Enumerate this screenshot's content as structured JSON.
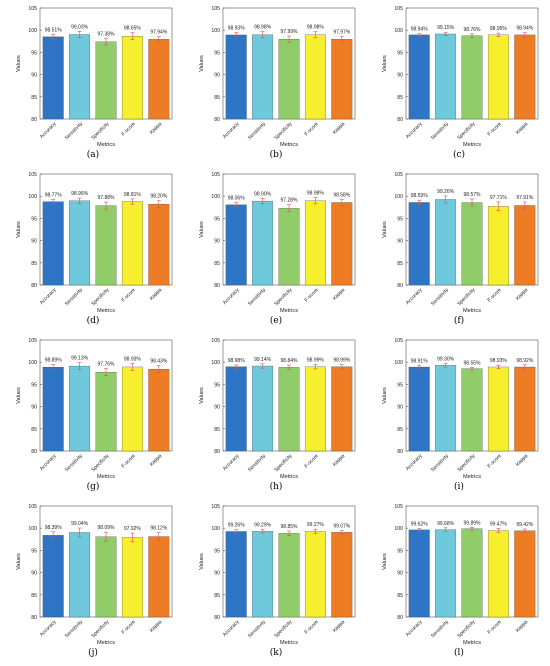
{
  "colors": {
    "accuracy": "#2e75c5",
    "sensitivity": "#6ec9dc",
    "specificity": "#90cc68",
    "fscore": "#f7ef2e",
    "kappa": "#ee7c24",
    "error_bar": "#e05050",
    "axis": "#555555"
  },
  "chart_data": [
    {
      "type": "bar",
      "caption": "(a)",
      "categories": [
        "Accuracy",
        "Sensitivity",
        "Specificity",
        "F-score",
        "Kappa"
      ],
      "values": [
        98.51,
        99.03,
        97.38,
        98.65,
        97.94
      ],
      "value_labels": [
        "98.51%",
        "99.03%",
        "97.38%",
        "98.65%",
        "97.94%"
      ],
      "errors": [
        0.5,
        0.7,
        0.7,
        0.8,
        0.6
      ],
      "xlabel": "Metrics",
      "ylabel": "Values",
      "ylim": [
        80,
        105
      ],
      "yticks": [
        "80",
        "85",
        "90",
        "95",
        "100",
        "105"
      ]
    },
    {
      "type": "bar",
      "caption": "(b)",
      "categories": [
        "Accuracy",
        "Sensitivity",
        "Specificity",
        "F-score",
        "Kappa"
      ],
      "values": [
        98.93,
        98.98,
        97.99,
        98.98,
        97.97
      ],
      "value_labels": [
        "98.93%",
        "98.98%",
        "97.99%",
        "98.98%",
        "97.97%"
      ],
      "errors": [
        0.6,
        0.7,
        0.7,
        0.7,
        0.6
      ],
      "xlabel": "Metrics",
      "ylabel": "Values",
      "ylim": [
        80,
        105
      ],
      "yticks": [
        "80",
        "85",
        "90",
        "95",
        "100",
        "105"
      ]
    },
    {
      "type": "bar",
      "caption": "(c)",
      "categories": [
        "Accuracy",
        "Sensitivity",
        "Specificity",
        "F-score",
        "Kappa"
      ],
      "values": [
        98.94,
        99.15,
        98.76,
        98.95,
        98.94
      ],
      "value_labels": [
        "98.94%",
        "99.15%",
        "98.76%",
        "98.95%",
        "98.94%"
      ],
      "errors": [
        0.3,
        0.4,
        0.4,
        0.4,
        0.5
      ],
      "xlabel": "Metrics",
      "ylabel": "Values",
      "ylim": [
        80,
        105
      ],
      "yticks": [
        "80",
        "85",
        "90",
        "95",
        "100",
        "105"
      ]
    },
    {
      "type": "bar",
      "caption": "(d)",
      "categories": [
        "Accuracy",
        "Sensitivity",
        "Specificity",
        "F-score",
        "Kappa"
      ],
      "values": [
        98.77,
        98.96,
        97.88,
        98.81,
        98.2
      ],
      "value_labels": [
        "98.77%",
        "98.96%",
        "97.88%",
        "98.81%",
        "98.20%"
      ],
      "errors": [
        0.5,
        0.6,
        0.8,
        0.6,
        0.8
      ],
      "xlabel": "Metrics",
      "ylabel": "Values",
      "ylim": [
        80,
        105
      ],
      "yticks": [
        "80",
        "85",
        "90",
        "95",
        "100",
        "105"
      ]
    },
    {
      "type": "bar",
      "caption": "(e)",
      "categories": [
        "Accuracy",
        "Sensitivity",
        "Specificity",
        "F-score",
        "Kappa"
      ],
      "values": [
        98.06,
        98.9,
        97.28,
        98.98,
        98.58
      ],
      "value_labels": [
        "98.06%",
        "98.90%",
        "97.28%",
        "98.98%",
        "98.58%"
      ],
      "errors": [
        0.5,
        0.6,
        0.8,
        0.7,
        0.7
      ],
      "xlabel": "Metrics",
      "ylabel": "Values",
      "ylim": [
        80,
        105
      ],
      "yticks": [
        "80",
        "85",
        "90",
        "95",
        "100",
        "105"
      ]
    },
    {
      "type": "bar",
      "caption": "(f)",
      "categories": [
        "Accuracy",
        "Sensitivity",
        "Specificity",
        "F-score",
        "Kappa"
      ],
      "values": [
        98.59,
        99.26,
        98.57,
        97.71,
        97.91
      ],
      "value_labels": [
        "98.59%",
        "99.26%",
        "98.57%",
        "97.71%",
        "97.91%"
      ],
      "errors": [
        0.5,
        0.8,
        0.8,
        1.0,
        0.8
      ],
      "xlabel": "Metrics",
      "ylabel": "Values",
      "ylim": [
        80,
        105
      ],
      "yticks": [
        "80",
        "85",
        "90",
        "95",
        "100",
        "105"
      ]
    },
    {
      "type": "bar",
      "caption": "(g)",
      "categories": [
        "Accuracy",
        "Sensitivity",
        "Specificity",
        "F-score",
        "Kappa"
      ],
      "values": [
        98.89,
        99.13,
        97.76,
        98.93,
        98.43
      ],
      "value_labels": [
        "98.89%",
        "99.13%",
        "97.76%",
        "98.93%",
        "98.43%"
      ],
      "errors": [
        0.6,
        0.8,
        0.8,
        0.8,
        0.8
      ],
      "xlabel": "Metrics",
      "ylabel": "Values",
      "ylim": [
        80,
        105
      ],
      "yticks": [
        "80",
        "85",
        "90",
        "95",
        "100",
        "105"
      ]
    },
    {
      "type": "bar",
      "caption": "(h)",
      "categories": [
        "Accuracy",
        "Sensitivity",
        "Specificity",
        "F-score",
        "Kappa"
      ],
      "values": [
        98.98,
        99.14,
        98.84,
        98.99,
        98.99
      ],
      "value_labels": [
        "98.98%",
        "99.14%",
        "98.84%",
        "98.99%",
        "98.99%"
      ],
      "errors": [
        0.4,
        0.5,
        0.5,
        0.5,
        0.5
      ],
      "xlabel": "Metrics",
      "ylabel": "Values",
      "ylim": [
        80,
        105
      ],
      "yticks": [
        "80",
        "85",
        "90",
        "95",
        "100",
        "105"
      ]
    },
    {
      "type": "bar",
      "caption": "(i)",
      "categories": [
        "Accuracy",
        "Sensitivity",
        "Specificity",
        "F-score",
        "Kappa"
      ],
      "values": [
        98.91,
        99.3,
        98.55,
        98.93,
        98.92
      ],
      "value_labels": [
        "98.91%",
        "99.30%",
        "98.55%",
        "98.93%",
        "98.92%"
      ],
      "errors": [
        0.4,
        0.4,
        0.3,
        0.4,
        0.5
      ],
      "xlabel": "Metrics",
      "ylabel": "Values",
      "ylim": [
        80,
        105
      ],
      "yticks": [
        "80",
        "85",
        "90",
        "95",
        "100",
        "105"
      ]
    },
    {
      "type": "bar",
      "caption": "(j)",
      "categories": [
        "Accuracy",
        "Sensitivity",
        "Specificity",
        "F-score",
        "Kappa"
      ],
      "values": [
        98.39,
        99.04,
        98.09,
        97.92,
        98.12
      ],
      "value_labels": [
        "98.39%",
        "99.04%",
        "98.09%",
        "97.92%",
        "98.12%"
      ],
      "errors": [
        0.8,
        1.0,
        1.0,
        1.0,
        0.9
      ],
      "xlabel": "Metrics",
      "ylabel": "Values",
      "ylim": [
        80,
        105
      ],
      "yticks": [
        "80",
        "85",
        "90",
        "95",
        "100",
        "105"
      ]
    },
    {
      "type": "bar",
      "caption": "(k)",
      "categories": [
        "Accuracy",
        "Sensitivity",
        "Specificity",
        "F-score",
        "Kappa"
      ],
      "values": [
        99.26,
        99.29,
        98.85,
        99.27,
        99.07
      ],
      "value_labels": [
        "99.26%",
        "99.29%",
        "98.85%",
        "99.27%",
        "99.07%"
      ],
      "errors": [
        0.4,
        0.4,
        0.5,
        0.5,
        0.4
      ],
      "xlabel": "Metrics",
      "ylabel": "Values",
      "ylim": [
        80,
        105
      ],
      "yticks": [
        "80",
        "85",
        "90",
        "95",
        "100",
        "105"
      ]
    },
    {
      "type": "bar",
      "caption": "(l)",
      "categories": [
        "Accuracy",
        "Sensitivity",
        "Specificity",
        "F-score",
        "Kappa"
      ],
      "values": [
        99.62,
        99.68,
        99.89,
        99.47,
        99.42
      ],
      "value_labels": [
        "99.62%",
        "99.68%",
        "99.89%",
        "99.47%",
        "99.42%"
      ],
      "errors": [
        0.3,
        0.4,
        0.3,
        0.5,
        0.4
      ],
      "xlabel": "Metrics",
      "ylabel": "Values",
      "ylim": [
        80,
        105
      ],
      "yticks": [
        "80",
        "85",
        "90",
        "95",
        "100",
        "105"
      ]
    }
  ]
}
